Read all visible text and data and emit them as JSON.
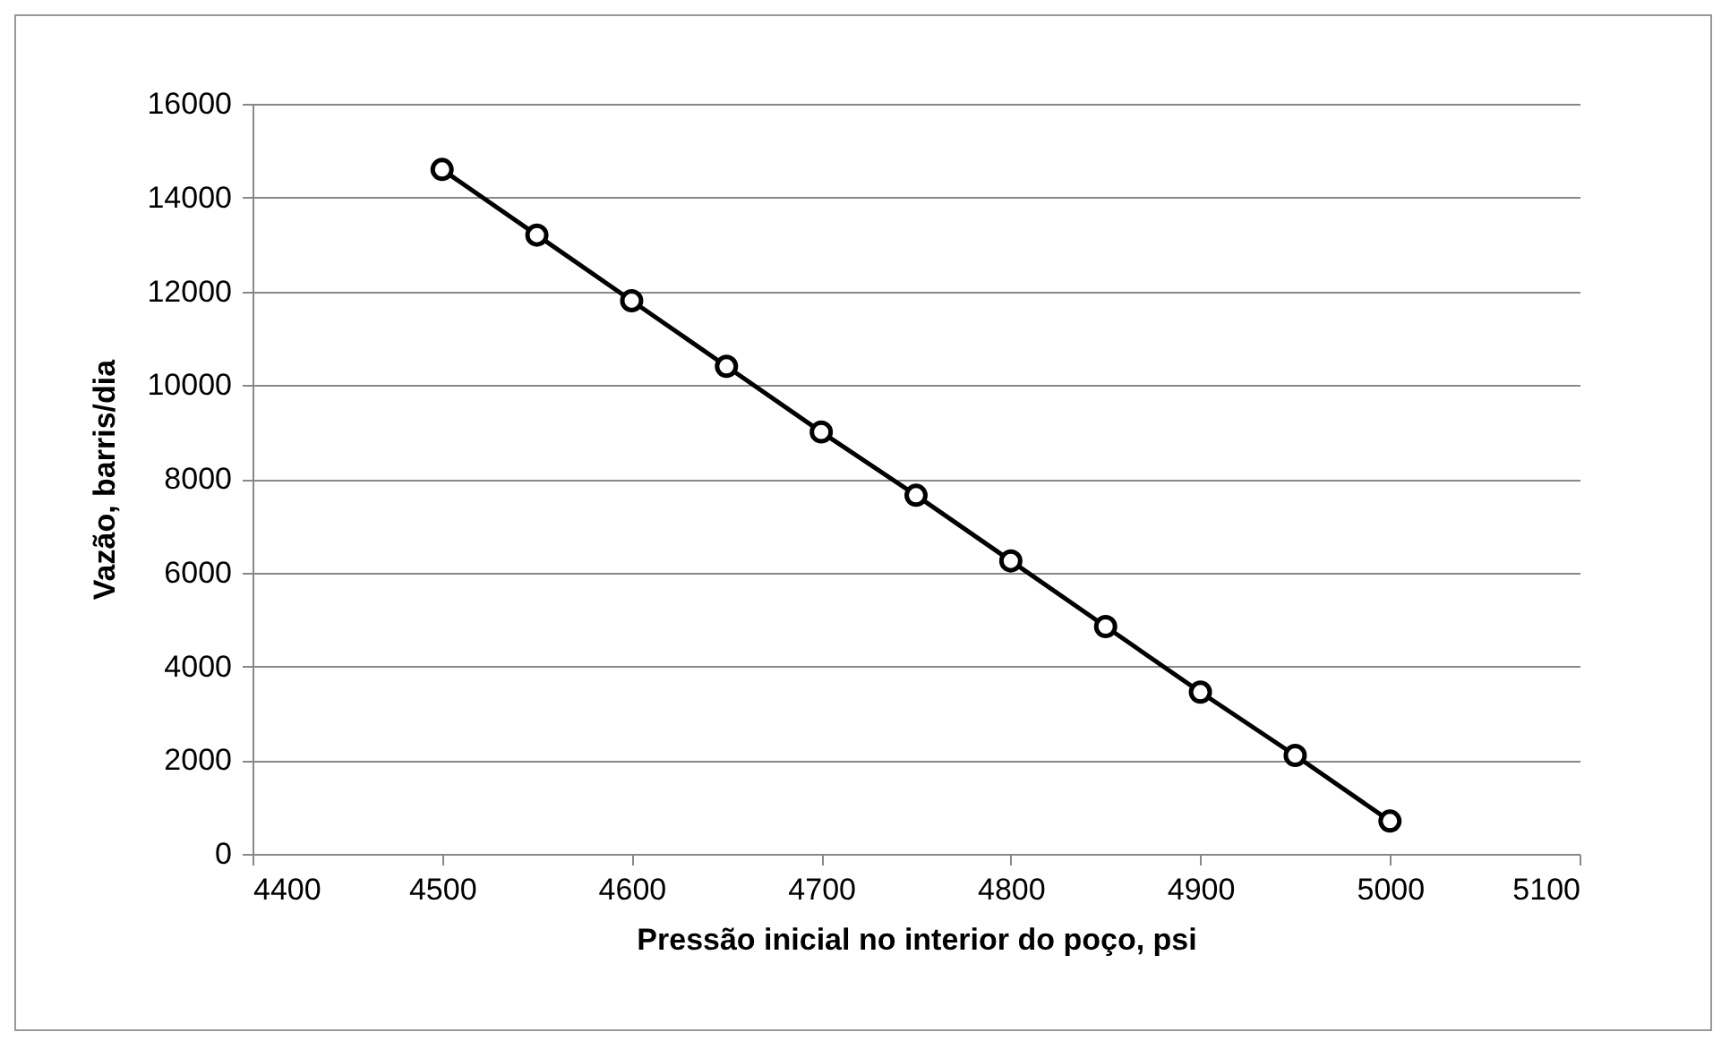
{
  "chart_data": {
    "type": "line",
    "xlabel": "Pressão inicial no interior do poço, psi",
    "ylabel": "Vazão, barris/dia",
    "x": [
      4500,
      4550,
      4600,
      4650,
      4700,
      4750,
      4800,
      4850,
      4900,
      4950,
      5000
    ],
    "series": [
      {
        "color": "#000000",
        "values": [
          14600,
          13200,
          11800,
          10400,
          9000,
          7650,
          6250,
          4850,
          3450,
          2100,
          700
        ]
      }
    ],
    "xlim": [
      4400,
      5100
    ],
    "xticks": [
      4400,
      4500,
      4600,
      4700,
      4800,
      4900,
      5000,
      5100
    ],
    "ylim": [
      0,
      16000
    ],
    "yticks": [
      0,
      2000,
      4000,
      6000,
      8000,
      10000,
      12000,
      14000,
      16000
    ],
    "grid": "y",
    "legend": false,
    "marker": "circle",
    "line_style": "solid"
  }
}
